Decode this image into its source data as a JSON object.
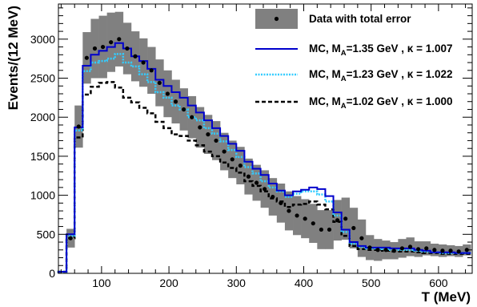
{
  "chart_data": {
    "type": "line",
    "xlabel": "T (MeV)",
    "ylabel": "Events/(12 MeV)",
    "xlim": [
      36,
      650
    ],
    "ylim": [
      0,
      3450
    ],
    "x_ticks": [
      100,
      200,
      300,
      400,
      500,
      600
    ],
    "y_ticks": [
      0,
      500,
      1000,
      1500,
      2000,
      2500,
      3000
    ],
    "x_tick_labels": [
      "100",
      "200",
      "300",
      "400",
      "500",
      "600"
    ],
    "y_tick_labels": [
      "0",
      "500",
      "1000",
      "1500",
      "2000",
      "2500",
      "3000"
    ],
    "bin_width": 12,
    "bin_low_edges": [
      36,
      48,
      60,
      72,
      84,
      96,
      108,
      120,
      132,
      144,
      156,
      168,
      180,
      192,
      204,
      216,
      228,
      240,
      252,
      264,
      276,
      288,
      300,
      312,
      324,
      336,
      348,
      360,
      372,
      384,
      396,
      408,
      420,
      432,
      444,
      456,
      468,
      480,
      492,
      504,
      516,
      528,
      540,
      552,
      564,
      576,
      588,
      600,
      612,
      624,
      636
    ],
    "legend": {
      "position": "top-right",
      "entries": [
        {
          "key": "data",
          "text_main": "Data with total error",
          "text_sub": "",
          "text_tail": ""
        },
        {
          "key": "mc1",
          "text_main": "MC, M",
          "text_sub": "A",
          "text_tail": "=1.35 GeV , κ = 1.007"
        },
        {
          "key": "mc2",
          "text_main": "MC, M",
          "text_sub": "A",
          "text_tail": "=1.23 GeV , κ = 1.022"
        },
        {
          "key": "mc3",
          "text_main": "MC, M",
          "text_sub": "A",
          "text_tail": "=1.02 GeV , κ = 1.000"
        }
      ]
    },
    "data_series": {
      "name": "Data with total error",
      "values": [
        0,
        450,
        1880,
        2760,
        2880,
        2900,
        2960,
        3000,
        2880,
        2780,
        2700,
        2600,
        2440,
        2300,
        2200,
        2100,
        2000,
        1870,
        1780,
        1700,
        1560,
        1460,
        1380,
        1240,
        1160,
        1080,
        980,
        900,
        800,
        740,
        700,
        640,
        560,
        560,
        680,
        700,
        580,
        450,
        330,
        300,
        300,
        290,
        320,
        340,
        310,
        320,
        300,
        290,
        290,
        280,
        300
      ],
      "err_low": [
        0,
        120,
        270,
        330,
        380,
        400,
        380,
        350,
        330,
        320,
        310,
        300,
        300,
        300,
        280,
        270,
        270,
        260,
        250,
        250,
        240,
        240,
        240,
        230,
        230,
        240,
        240,
        250,
        250,
        250,
        250,
        250,
        250,
        250,
        260,
        270,
        260,
        240,
        160,
        140,
        120,
        110,
        120,
        120,
        100,
        90,
        80,
        80,
        70,
        70,
        70
      ],
      "err_high": [
        0,
        120,
        270,
        330,
        380,
        400,
        380,
        350,
        330,
        320,
        310,
        300,
        300,
        300,
        280,
        270,
        270,
        260,
        250,
        250,
        240,
        240,
        240,
        230,
        230,
        240,
        240,
        250,
        250,
        250,
        250,
        250,
        250,
        250,
        260,
        270,
        260,
        240,
        160,
        140,
        120,
        110,
        120,
        120,
        100,
        90,
        80,
        80,
        70,
        70,
        70
      ]
    },
    "series": [
      {
        "key": "mc1",
        "name": "MC, MA=1.35 GeV , κ = 1.007",
        "color": "#0000cc",
        "values": [
          20,
          500,
          1870,
          2660,
          2800,
          2850,
          2900,
          2950,
          2880,
          2780,
          2720,
          2620,
          2480,
          2400,
          2320,
          2250,
          2150,
          2060,
          1960,
          1860,
          1760,
          1660,
          1570,
          1430,
          1340,
          1260,
          1150,
          1060,
          1000,
          1050,
          1070,
          1100,
          1080,
          990,
          780,
          560,
          400,
          350,
          330,
          330,
          330,
          320,
          320,
          320,
          300,
          290,
          270,
          270,
          270,
          260,
          260
        ]
      },
      {
        "key": "mc2",
        "name": "MC, MA=1.23 GeV , κ = 1.022",
        "color": "#33ccff",
        "values": [
          20,
          480,
          1830,
          2590,
          2700,
          2720,
          2750,
          2810,
          2700,
          2650,
          2550,
          2450,
          2320,
          2250,
          2150,
          2100,
          2000,
          1960,
          1860,
          1790,
          1690,
          1580,
          1490,
          1360,
          1280,
          1180,
          1100,
          1050,
          980,
          1020,
          1050,
          1050,
          1010,
          920,
          740,
          530,
          380,
          340,
          320,
          320,
          310,
          300,
          300,
          300,
          290,
          280,
          270,
          260,
          260,
          260,
          260
        ]
      },
      {
        "key": "mc3",
        "name": "MC, MA=1.02 GeV , κ = 1.000",
        "color": "#000000",
        "values": [
          20,
          450,
          1740,
          2290,
          2390,
          2440,
          2450,
          2380,
          2250,
          2190,
          2120,
          2050,
          1940,
          1860,
          1780,
          1760,
          1700,
          1640,
          1560,
          1500,
          1420,
          1350,
          1290,
          1180,
          1120,
          1050,
          960,
          920,
          850,
          880,
          890,
          920,
          880,
          820,
          660,
          480,
          350,
          310,
          300,
          300,
          290,
          280,
          280,
          280,
          270,
          260,
          260,
          250,
          250,
          250,
          250
        ]
      }
    ],
    "colors": {
      "error_band": "#808080",
      "frame": "#000000",
      "marker": "#000000"
    }
  }
}
